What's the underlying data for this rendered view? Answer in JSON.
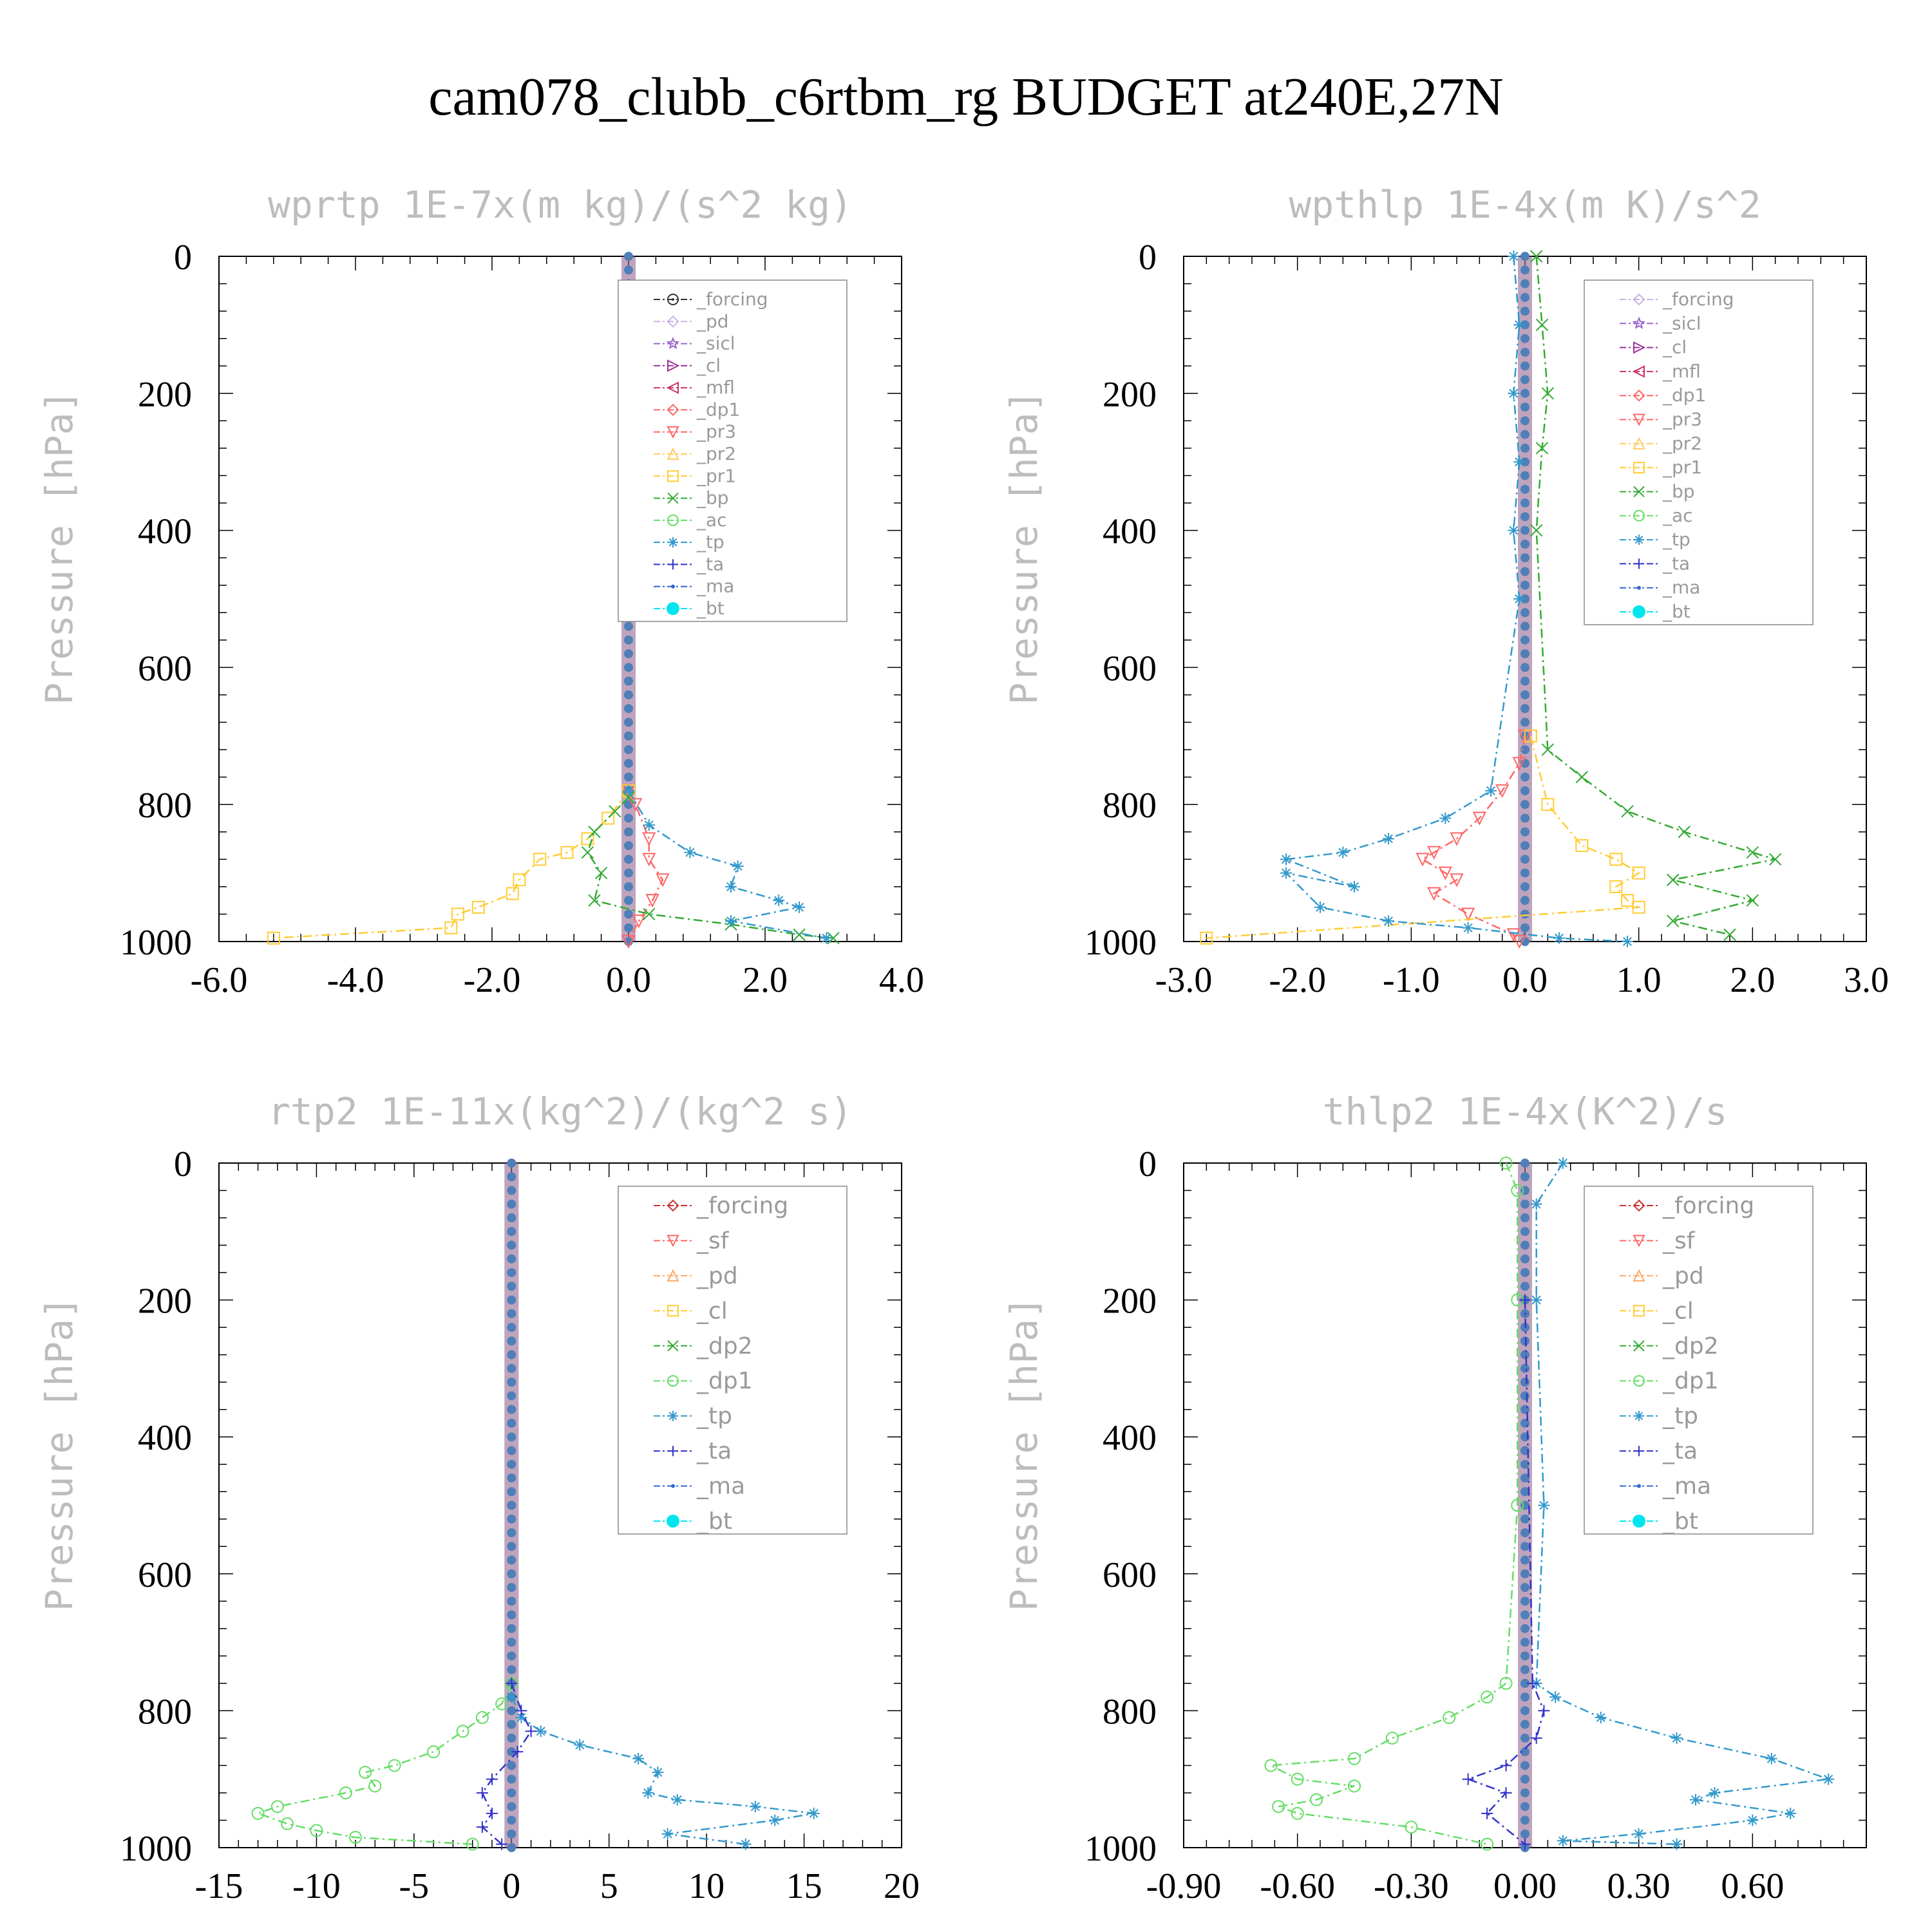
{
  "figure": {
    "title": "cam078_clubb_c6rtbm_rg  BUDGET at240E,27N"
  },
  "chart_data": [
    {
      "type": "line",
      "title": "wprtp  1E-7x(m kg)/(s^2 kg)",
      "ylabel": "Pressure [hPa]",
      "xlim": [
        -6,
        4
      ],
      "ylim": [
        1000,
        0
      ],
      "y_inverted": true,
      "xticks": [
        -6,
        -4,
        -2,
        0,
        2,
        4
      ],
      "xtick_labels": [
        "-6.0",
        "-4.0",
        "-2.0",
        "0.0",
        "2.0",
        "4.0"
      ],
      "yticks": [
        0,
        200,
        400,
        600,
        800,
        1000
      ],
      "ytick_labels": [
        "0",
        "200",
        "400",
        "600",
        "800",
        "1000"
      ],
      "legend_placement": "upper-right",
      "legend_font": "small",
      "series": [
        {
          "name": "_forcing",
          "color": "#333333",
          "marker": "circle-dot"
        },
        {
          "name": "_pd",
          "color": "#c9b3e6",
          "marker": "diamond"
        },
        {
          "name": "_sicl",
          "color": "#9966cc",
          "marker": "star"
        },
        {
          "name": "_cl",
          "color": "#993399",
          "marker": "triangle-right"
        },
        {
          "name": "_mfl",
          "color": "#cc3366",
          "marker": "triangle-left"
        },
        {
          "name": "_dp1",
          "color": "#ff6666",
          "marker": "diamond"
        },
        {
          "name": "_pr3",
          "color": "#ff6666",
          "marker": "triangle-down",
          "x": [
            0,
            0.1,
            0.3,
            0.3,
            0.5,
            0.35,
            0.15,
            0
          ],
          "y": [
            780,
            800,
            850,
            880,
            910,
            940,
            970,
            1000
          ]
        },
        {
          "name": "_pr2",
          "color": "#ffcc66",
          "marker": "triangle-up"
        },
        {
          "name": "_pr1",
          "color": "#ffcc33",
          "marker": "square",
          "x": [
            0,
            -0.3,
            -0.6,
            -0.9,
            -1.3,
            -1.6,
            -1.7,
            -2.2,
            -2.5,
            -2.6,
            -5.2
          ],
          "y": [
            780,
            820,
            850,
            870,
            880,
            910,
            930,
            950,
            960,
            980,
            995
          ]
        },
        {
          "name": "_bp",
          "color": "#33aa33",
          "marker": "x",
          "x": [
            0,
            -0.2,
            -0.5,
            -0.6,
            -0.4,
            -0.5,
            0.3,
            1.5,
            2.5,
            3.0
          ],
          "y": [
            790,
            810,
            840,
            870,
            900,
            940,
            960,
            975,
            990,
            995
          ]
        },
        {
          "name": "_ac",
          "color": "#66dd66",
          "marker": "circle"
        },
        {
          "name": "_tp",
          "color": "#3399cc",
          "marker": "asterisk",
          "x": [
            0,
            0.3,
            0.9,
            1.6,
            1.5,
            2.2,
            2.5,
            1.5,
            2.9
          ],
          "y": [
            780,
            830,
            870,
            890,
            920,
            940,
            950,
            970,
            995
          ]
        },
        {
          "name": "_ta",
          "color": "#3333cc",
          "marker": "plus"
        },
        {
          "name": "_ma",
          "color": "#3366cc",
          "marker": "dot"
        },
        {
          "name": "_bt",
          "color": "#00e5ee",
          "marker": "filled-circle"
        }
      ]
    },
    {
      "type": "line",
      "title": "wpthlp  1E-4x(m K)/s^2",
      "ylabel": "Pressure [hPa]",
      "xlim": [
        -3,
        3
      ],
      "ylim": [
        1000,
        0
      ],
      "y_inverted": true,
      "xticks": [
        -3,
        -2,
        -1,
        0,
        1,
        2,
        3
      ],
      "xtick_labels": [
        "-3.0",
        "-2.0",
        "-1.0",
        "0.0",
        "1.0",
        "2.0",
        "3.0"
      ],
      "yticks": [
        0,
        200,
        400,
        600,
        800,
        1000
      ],
      "ytick_labels": [
        "0",
        "200",
        "400",
        "600",
        "800",
        "1000"
      ],
      "legend_placement": "upper-right",
      "legend_font": "small",
      "series": [
        {
          "name": "_forcing",
          "color": "#c9b3e6",
          "marker": "diamond"
        },
        {
          "name": "_sicl",
          "color": "#9966cc",
          "marker": "star"
        },
        {
          "name": "_cl",
          "color": "#993399",
          "marker": "triangle-right"
        },
        {
          "name": "_mfl",
          "color": "#cc3366",
          "marker": "triangle-left"
        },
        {
          "name": "_dp1",
          "color": "#ff6666",
          "marker": "diamond"
        },
        {
          "name": "_pr3",
          "color": "#ff6666",
          "marker": "triangle-down",
          "x": [
            0,
            -0.05,
            -0.2,
            -0.4,
            -0.6,
            -0.8,
            -0.9,
            -0.7,
            -0.6,
            -0.8,
            -0.5,
            -0.1,
            -0.05
          ],
          "y": [
            700,
            740,
            780,
            820,
            850,
            870,
            880,
            900,
            910,
            930,
            960,
            990,
            1000
          ]
        },
        {
          "name": "_pr2",
          "color": "#ffcc66",
          "marker": "triangle-up"
        },
        {
          "name": "_pr1",
          "color": "#ffcc33",
          "marker": "square",
          "x": [
            0.05,
            0.2,
            0.5,
            0.8,
            1.0,
            0.8,
            0.9,
            1.0,
            -2.8
          ],
          "y": [
            700,
            800,
            860,
            880,
            900,
            920,
            940,
            950,
            995
          ]
        },
        {
          "name": "_bp",
          "color": "#33aa33",
          "marker": "x",
          "x": [
            0.1,
            0.15,
            0.2,
            0.15,
            0.1,
            0.2,
            0.5,
            0.9,
            1.4,
            2.0,
            2.2,
            1.3,
            2.0,
            1.3,
            1.8
          ],
          "y": [
            0,
            100,
            200,
            280,
            400,
            720,
            760,
            810,
            840,
            870,
            880,
            910,
            940,
            970,
            990
          ]
        },
        {
          "name": "_ac",
          "color": "#66dd66",
          "marker": "circle"
        },
        {
          "name": "_tp",
          "color": "#3399cc",
          "marker": "asterisk",
          "x": [
            -0.1,
            -0.05,
            -0.1,
            -0.05,
            -0.1,
            -0.05,
            -0.3,
            -0.7,
            -1.2,
            -1.6,
            -2.1,
            -1.5,
            -2.1,
            -1.8,
            -1.2,
            -0.5,
            0.3,
            0.9
          ],
          "y": [
            0,
            100,
            200,
            300,
            400,
            500,
            780,
            820,
            850,
            870,
            880,
            920,
            900,
            950,
            970,
            980,
            995,
            1000
          ]
        },
        {
          "name": "_ta",
          "color": "#3333cc",
          "marker": "plus"
        },
        {
          "name": "_ma",
          "color": "#3366cc",
          "marker": "dot"
        },
        {
          "name": "_bt",
          "color": "#00e5ee",
          "marker": "filled-circle"
        }
      ]
    },
    {
      "type": "line",
      "title": "rtp2  1E-11x(kg^2)/(kg^2 s)",
      "ylabel": "Pressure [hPa]",
      "xlim": [
        -15,
        20
      ],
      "ylim": [
        1000,
        0
      ],
      "y_inverted": true,
      "xticks": [
        -15,
        -10,
        -5,
        0,
        5,
        10,
        15,
        20
      ],
      "xtick_labels": [
        "-15",
        "-10",
        "-5",
        "0",
        "5",
        "10",
        "15",
        "20"
      ],
      "yticks": [
        0,
        200,
        400,
        600,
        800,
        1000
      ],
      "ytick_labels": [
        "0",
        "200",
        "400",
        "600",
        "800",
        "1000"
      ],
      "legend_placement": "upper-right",
      "legend_font": "large",
      "series": [
        {
          "name": "_forcing",
          "color": "#cc3333",
          "marker": "diamond"
        },
        {
          "name": "_sf",
          "color": "#ff6666",
          "marker": "triangle-down"
        },
        {
          "name": "_pd",
          "color": "#ffaa66",
          "marker": "triangle-up"
        },
        {
          "name": "_cl",
          "color": "#ffcc33",
          "marker": "square"
        },
        {
          "name": "_dp2",
          "color": "#33aa33",
          "marker": "x"
        },
        {
          "name": "_dp1",
          "color": "#66dd66",
          "marker": "circle",
          "x": [
            0,
            -0.5,
            -1.5,
            -2.5,
            -4,
            -6,
            -7.5,
            -7,
            -8.5,
            -12,
            -13,
            -11.5,
            -10,
            -8,
            -2
          ],
          "y": [
            760,
            790,
            810,
            830,
            860,
            880,
            890,
            910,
            920,
            940,
            950,
            965,
            975,
            985,
            995
          ]
        },
        {
          "name": "_tp",
          "color": "#3399cc",
          "marker": "asterisk",
          "x": [
            0,
            0.5,
            1.5,
            3.5,
            6.5,
            7.5,
            7,
            8.5,
            12.5,
            15.5,
            13.5,
            8,
            12
          ],
          "y": [
            780,
            810,
            830,
            850,
            870,
            890,
            920,
            930,
            940,
            950,
            960,
            980,
            995
          ]
        },
        {
          "name": "_ta",
          "color": "#3333cc",
          "marker": "plus",
          "x": [
            0,
            0.5,
            1,
            0.3,
            -1,
            -1.5,
            -1,
            -1.5,
            -0.5
          ],
          "y": [
            760,
            800,
            830,
            860,
            900,
            920,
            950,
            970,
            995
          ]
        },
        {
          "name": "_ma",
          "color": "#3366cc",
          "marker": "dot"
        },
        {
          "name": "_bt",
          "color": "#00e5ee",
          "marker": "filled-circle"
        }
      ]
    },
    {
      "type": "line",
      "title": "thlp2  1E-4x(K^2)/s",
      "ylabel": "Pressure [hPa]",
      "xlim": [
        -0.9,
        0.9
      ],
      "ylim": [
        1000,
        0
      ],
      "y_inverted": true,
      "xticks": [
        -0.9,
        -0.6,
        -0.3,
        0.0,
        0.3,
        0.6
      ],
      "xtick_labels": [
        "-0.90",
        "-0.60",
        "-0.30",
        "0.00",
        "0.30",
        "0.60"
      ],
      "yticks": [
        0,
        200,
        400,
        600,
        800,
        1000
      ],
      "ytick_labels": [
        "0",
        "200",
        "400",
        "600",
        "800",
        "1000"
      ],
      "legend_placement": "upper-right",
      "legend_font": "large",
      "series": [
        {
          "name": "_forcing",
          "color": "#cc3333",
          "marker": "diamond"
        },
        {
          "name": "_sf",
          "color": "#ff6666",
          "marker": "triangle-down"
        },
        {
          "name": "_pd",
          "color": "#ffaa66",
          "marker": "triangle-up"
        },
        {
          "name": "_cl",
          "color": "#ffcc33",
          "marker": "square"
        },
        {
          "name": "_dp2",
          "color": "#33aa33",
          "marker": "x"
        },
        {
          "name": "_dp1",
          "color": "#66dd66",
          "marker": "circle",
          "x": [
            -0.05,
            -0.02,
            -0.02,
            -0.02,
            -0.05,
            -0.1,
            -0.2,
            -0.35,
            -0.45,
            -0.67,
            -0.6,
            -0.45,
            -0.55,
            -0.65,
            -0.6,
            -0.3,
            -0.1
          ],
          "y": [
            0,
            40,
            200,
            500,
            760,
            780,
            810,
            840,
            870,
            880,
            900,
            910,
            930,
            940,
            950,
            970,
            995
          ]
        },
        {
          "name": "_tp",
          "color": "#3399cc",
          "marker": "asterisk",
          "x": [
            0.1,
            0.03,
            0.03,
            0.05,
            0.03,
            0.08,
            0.2,
            0.4,
            0.65,
            0.8,
            0.5,
            0.45,
            0.7,
            0.6,
            0.3,
            0.1,
            0.4
          ],
          "y": [
            0,
            60,
            200,
            500,
            760,
            780,
            810,
            840,
            870,
            900,
            920,
            930,
            950,
            960,
            980,
            990,
            995
          ]
        },
        {
          "name": "_ta",
          "color": "#3333cc",
          "marker": "plus",
          "x": [
            0,
            0.02,
            0.05,
            0.03,
            -0.05,
            -0.15,
            -0.05,
            -0.1,
            0.0
          ],
          "y": [
            200,
            760,
            800,
            840,
            880,
            900,
            920,
            950,
            995
          ]
        },
        {
          "name": "_ma",
          "color": "#3366cc",
          "marker": "dot"
        },
        {
          "name": "_bt",
          "color": "#00e5ee",
          "marker": "filled-circle"
        }
      ]
    }
  ]
}
